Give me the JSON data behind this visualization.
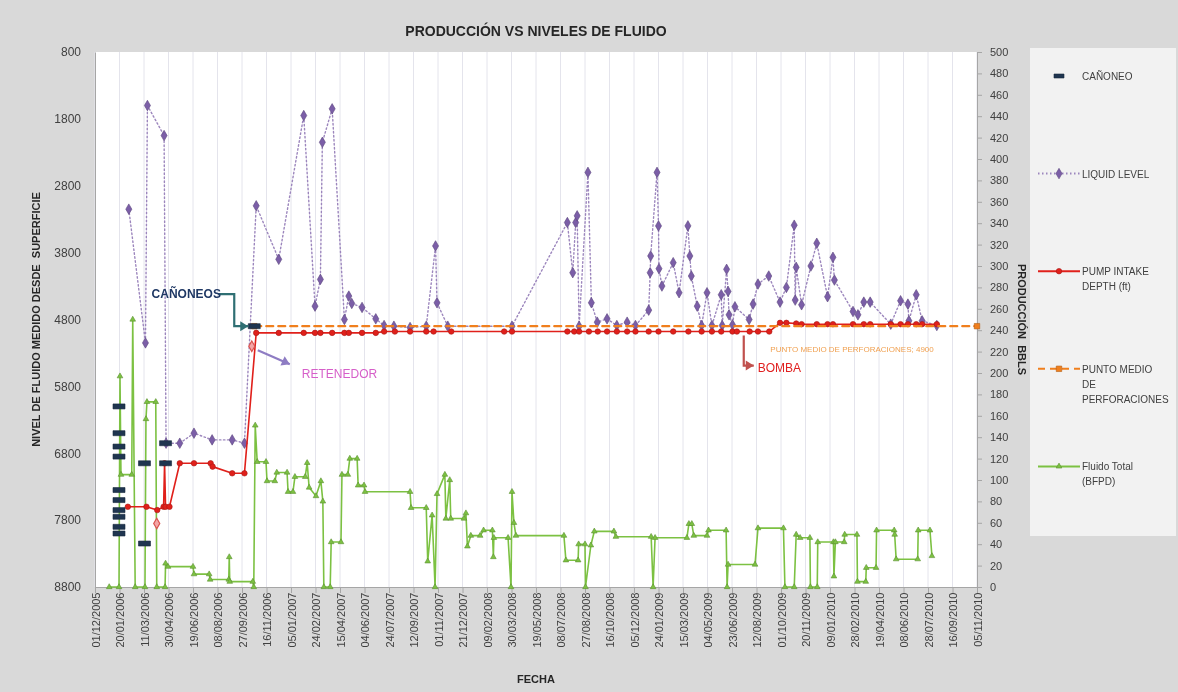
{
  "chart_data": {
    "type": "line",
    "title": "PRODUCCIÓN VS NIVELES DE FLUIDO",
    "xlabel": "FECHA",
    "ylabel": "NIVEL DE FLUIDO MEDIDO DESDE  SUPERFICIE",
    "y2label": "PRODUCCIÓN  BBLS",
    "xlim": [
      "2005-12-01",
      "2010-11-05"
    ],
    "xticks": [
      {
        "value": "2005-12-01",
        "label": "01/12/2005"
      },
      {
        "value": "2006-01-20",
        "label": "20/01/2006"
      },
      {
        "value": "2006-03-11",
        "label": "11/03/2006"
      },
      {
        "value": "2006-04-30",
        "label": "30/04/2006"
      },
      {
        "value": "2006-06-19",
        "label": "19/06/2006"
      },
      {
        "value": "2006-08-08",
        "label": "08/08/2006"
      },
      {
        "value": "2006-09-27",
        "label": "27/09/2006"
      },
      {
        "value": "2006-11-16",
        "label": "16/11/2006"
      },
      {
        "value": "2007-01-05",
        "label": "05/01/2007"
      },
      {
        "value": "2007-02-24",
        "label": "24/02/2007"
      },
      {
        "value": "2007-04-15",
        "label": "15/04/2007"
      },
      {
        "value": "2007-06-04",
        "label": "04/06/2007"
      },
      {
        "value": "2007-07-24",
        "label": "24/07/2007"
      },
      {
        "value": "2007-09-12",
        "label": "12/09/2007"
      },
      {
        "value": "2007-11-01",
        "label": "01/11/2007"
      },
      {
        "value": "2007-12-21",
        "label": "21/12/2007"
      },
      {
        "value": "2008-02-09",
        "label": "09/02/2008"
      },
      {
        "value": "2008-03-30",
        "label": "30/03/2008"
      },
      {
        "value": "2008-05-19",
        "label": "19/05/2008"
      },
      {
        "value": "2008-07-08",
        "label": "08/07/2008"
      },
      {
        "value": "2008-08-27",
        "label": "27/08/2008"
      },
      {
        "value": "2008-10-16",
        "label": "16/10/2008"
      },
      {
        "value": "2008-12-05",
        "label": "05/12/2008"
      },
      {
        "value": "2009-01-24",
        "label": "24/01/2009"
      },
      {
        "value": "2009-03-15",
        "label": "15/03/2009"
      },
      {
        "value": "2009-05-04",
        "label": "04/05/2009"
      },
      {
        "value": "2009-06-23",
        "label": "23/06/2009"
      },
      {
        "value": "2009-08-12",
        "label": "12/08/2009"
      },
      {
        "value": "2009-10-01",
        "label": "01/10/2009"
      },
      {
        "value": "2009-11-20",
        "label": "20/11/2009"
      },
      {
        "value": "2010-01-09",
        "label": "09/01/2010"
      },
      {
        "value": "2010-02-28",
        "label": "28/02/2010"
      },
      {
        "value": "2010-04-19",
        "label": "19/04/2010"
      },
      {
        "value": "2010-06-08",
        "label": "08/06/2010"
      },
      {
        "value": "2010-07-28",
        "label": "28/07/2010"
      },
      {
        "value": "2010-09-16",
        "label": "16/09/2010"
      },
      {
        "value": "2010-11-05",
        "label": "05/11/2010"
      }
    ],
    "ylim": [
      8800,
      800
    ],
    "yticks": [
      800,
      1800,
      2800,
      3800,
      4800,
      5800,
      6800,
      7800,
      8800
    ],
    "y2lim": [
      0,
      500
    ],
    "y2ticks": [
      0,
      20,
      40,
      60,
      80,
      100,
      120,
      140,
      160,
      180,
      200,
      220,
      240,
      260,
      280,
      300,
      320,
      340,
      360,
      380,
      400,
      420,
      440,
      460,
      480,
      500
    ],
    "grid": "x",
    "legend": "right",
    "series": [
      {
        "name": "CAÑONEO",
        "type": "scatter",
        "marker": "square",
        "color": "#1f3550",
        "x": [
          "2006-01-19",
          "2006-01-19",
          "2006-01-19",
          "2006-01-19",
          "2006-01-19",
          "2006-01-19",
          "2006-01-19",
          "2006-01-19",
          "2006-01-19",
          "2006-01-19",
          "2006-03-12",
          "2006-03-12",
          "2006-04-24",
          "2006-04-24",
          "2006-10-22"
        ],
        "values": [
          6100,
          6500,
          6700,
          6850,
          7350,
          7500,
          7650,
          7750,
          7900,
          8000,
          6950,
          8150,
          6650,
          6950,
          4900
        ]
      },
      {
        "name": "LIQUID LEVEL",
        "type": "line",
        "marker": "diamond",
        "line_style": "dotted",
        "color": "#7b5ea7",
        "x": [
          "2006-02-08",
          "2006-03-14",
          "2006-03-18",
          "2006-04-21",
          "2006-04-25",
          "2006-05-23",
          "2006-06-21",
          "2006-07-28",
          "2006-09-07",
          "2006-10-02",
          "2006-10-26",
          "2006-12-11",
          "2007-01-31",
          "2007-02-23",
          "2007-03-06",
          "2007-03-10",
          "2007-03-30",
          "2007-04-24",
          "2007-05-03",
          "2007-05-09",
          "2007-05-30",
          "2007-06-27",
          "2007-07-14",
          "2007-08-03",
          "2007-09-05",
          "2007-10-08",
          "2007-10-27",
          "2007-10-30",
          "2007-11-21",
          "2008-03-31",
          "2008-07-22",
          "2008-08-02",
          "2008-08-08",
          "2008-08-11",
          "2008-08-15",
          "2008-09-02",
          "2008-09-09",
          "2008-09-21",
          "2008-10-11",
          "2008-10-31",
          "2008-11-21",
          "2008-12-08",
          "2009-01-04",
          "2009-01-07",
          "2009-01-08",
          "2009-01-21",
          "2009-01-24",
          "2009-01-25",
          "2009-01-31",
          "2009-02-23",
          "2009-03-07",
          "2009-03-25",
          "2009-03-29",
          "2009-04-01",
          "2009-04-13",
          "2009-04-22",
          "2009-05-03",
          "2009-05-13",
          "2009-06-01",
          "2009-06-03",
          "2009-06-12",
          "2009-06-15",
          "2009-06-17",
          "2009-06-24",
          "2009-06-29",
          "2009-07-28",
          "2009-08-05",
          "2009-08-15",
          "2009-09-06",
          "2009-09-29",
          "2009-10-12",
          "2009-10-28",
          "2009-10-30",
          "2009-11-01",
          "2009-11-12",
          "2009-12-01",
          "2009-12-13",
          "2010-01-04",
          "2010-01-15",
          "2010-01-18",
          "2010-02-25",
          "2010-03-07",
          "2010-03-19",
          "2010-04-01",
          "2010-05-13",
          "2010-06-02",
          "2010-06-17",
          "2010-06-19",
          "2010-07-04",
          "2010-07-16",
          "2010-08-15"
        ],
        "values": [
          3150,
          5150,
          1600,
          2050,
          6650,
          6650,
          6500,
          6600,
          6600,
          6650,
          3100,
          3900,
          1750,
          4600,
          4200,
          2150,
          1650,
          4800,
          4450,
          4560,
          4620,
          4790,
          4890,
          4900,
          4920,
          4900,
          3700,
          4550,
          4900,
          4900,
          3350,
          4100,
          3350,
          3250,
          4900,
          2600,
          4550,
          4840,
          4790,
          4890,
          4840,
          4890,
          4660,
          4100,
          3850,
          2600,
          3400,
          4040,
          4300,
          3950,
          4400,
          3400,
          3850,
          4150,
          4600,
          4890,
          4400,
          4890,
          4430,
          4890,
          4050,
          4380,
          4730,
          4880,
          4610,
          4800,
          4570,
          4270,
          4150,
          4540,
          4320,
          3390,
          4510,
          4020,
          4580,
          4000,
          3660,
          4460,
          3870,
          4210,
          4680,
          4730,
          4540,
          4540,
          4870,
          4520,
          4570,
          4820,
          4430,
          4820,
          4890
        ]
      },
      {
        "name": "PUMP INTAKE DEPTH (ft)",
        "type": "line",
        "marker": "circle",
        "line_style": "solid",
        "color": "#e0201b",
        "x": [
          "2006-02-06",
          "2006-03-16",
          "2006-04-07",
          "2006-04-20",
          "2006-04-22",
          "2006-04-24",
          "2006-05-02",
          "2006-05-23",
          "2006-06-21",
          "2006-07-25",
          "2006-07-29",
          "2006-09-07",
          "2006-10-02",
          "2006-10-26",
          "2006-12-11",
          "2007-01-31",
          "2007-02-23",
          "2007-03-06",
          "2007-03-30",
          "2007-04-24",
          "2007-05-03",
          "2007-05-30",
          "2007-06-27",
          "2007-07-14",
          "2007-08-05",
          "2007-09-05",
          "2007-10-08",
          "2007-10-23",
          "2007-11-28",
          "2008-03-15",
          "2008-03-31",
          "2008-07-22",
          "2008-08-05",
          "2008-08-15",
          "2008-09-04",
          "2008-09-22",
          "2008-10-11",
          "2008-10-31",
          "2008-11-21",
          "2008-12-08",
          "2009-01-04",
          "2009-01-24",
          "2009-02-23",
          "2009-03-26",
          "2009-04-22",
          "2009-05-13",
          "2009-06-01",
          "2009-06-24",
          "2009-07-03",
          "2009-07-29",
          "2009-08-15",
          "2009-09-07",
          "2009-09-29",
          "2009-10-12",
          "2009-11-01",
          "2009-11-12",
          "2009-12-13",
          "2010-01-04",
          "2010-01-15",
          "2010-02-25",
          "2010-03-19",
          "2010-04-01",
          "2010-05-13",
          "2010-06-02",
          "2010-06-17",
          "2010-07-04",
          "2010-07-16",
          "2010-08-15"
        ],
        "values": [
          7600,
          7600,
          7650,
          7600,
          6950,
          7600,
          7600,
          6950,
          6950,
          6950,
          7000,
          7100,
          7100,
          5000,
          5000,
          5000,
          5000,
          5000,
          5000,
          5000,
          5000,
          5000,
          5000,
          4980,
          4980,
          4980,
          4980,
          4980,
          4980,
          4980,
          4980,
          4980,
          4980,
          4980,
          4980,
          4980,
          4980,
          4980,
          4980,
          4980,
          4980,
          4980,
          4980,
          4980,
          4980,
          4980,
          4980,
          4980,
          4980,
          4980,
          4980,
          4980,
          4850,
          4850,
          4860,
          4870,
          4870,
          4870,
          4870,
          4870,
          4870,
          4870,
          4870,
          4870,
          4870,
          4870,
          4870,
          4870
        ]
      },
      {
        "name": "PUNTO MEDIO DE PERFORACIONES",
        "type": "line",
        "marker": "square",
        "line_style": "dashed",
        "color": "#f07f1d",
        "x": [
          "2006-10-22",
          "2010-11-05"
        ],
        "values": [
          4900,
          4900
        ]
      },
      {
        "name": "Fluido Total (BFPD)",
        "type": "line",
        "axis": "y2",
        "marker": "triangle",
        "line_style": "solid",
        "color": "#7cc142",
        "x": [
          "2005-12-30",
          "2006-01-19",
          "2006-01-21",
          "2006-01-23",
          "2006-02-14",
          "2006-02-16",
          "2006-02-21",
          "2006-03-13",
          "2006-03-15",
          "2006-03-17",
          "2006-04-04",
          "2006-04-06",
          "2006-04-23",
          "2006-04-24",
          "2006-04-29",
          "2006-06-19",
          "2006-06-21",
          "2006-07-22",
          "2006-07-24",
          "2006-08-31",
          "2006-09-01",
          "2006-09-02",
          "2006-10-19",
          "2006-10-21",
          "2006-10-24",
          "2006-10-28",
          "2006-11-15",
          "2006-11-17",
          "2006-12-03",
          "2006-12-07",
          "2006-12-28",
          "2006-12-30",
          "2007-01-09",
          "2007-01-13",
          "2007-02-03",
          "2007-02-07",
          "2007-02-11",
          "2007-02-25",
          "2007-03-07",
          "2007-03-11",
          "2007-03-13",
          "2007-03-26",
          "2007-03-28",
          "2007-04-17",
          "2007-04-19",
          "2007-05-01",
          "2007-05-05",
          "2007-05-20",
          "2007-05-22",
          "2007-06-03",
          "2007-06-05",
          "2007-09-05",
          "2007-09-07",
          "2007-10-08",
          "2007-10-11",
          "2007-10-20",
          "2007-10-26",
          "2007-10-30",
          "2007-11-15",
          "2007-11-17",
          "2007-11-25",
          "2007-11-27",
          "2007-12-24",
          "2007-12-28",
          "2007-12-31",
          "2008-01-07",
          "2008-01-26",
          "2008-02-02",
          "2008-02-20",
          "2008-02-22",
          "2008-02-23",
          "2008-03-23",
          "2008-03-29",
          "2008-03-31",
          "2008-04-04",
          "2008-04-08",
          "2008-07-15",
          "2008-07-19",
          "2008-08-13",
          "2008-08-14",
          "2008-08-27",
          "2008-08-28",
          "2008-09-08",
          "2008-09-15",
          "2008-10-25",
          "2008-10-29",
          "2009-01-09",
          "2009-01-13",
          "2009-01-17",
          "2009-03-23",
          "2009-03-27",
          "2009-04-02",
          "2009-04-06",
          "2009-05-03",
          "2009-05-06",
          "2009-06-11",
          "2009-06-13",
          "2009-06-15",
          "2009-08-09",
          "2009-08-15",
          "2009-10-06",
          "2009-10-09",
          "2009-10-28",
          "2009-11-01",
          "2009-11-09",
          "2009-11-29",
          "2009-11-30",
          "2009-12-14",
          "2009-12-15",
          "2010-01-16",
          "2010-01-17",
          "2010-01-20",
          "2010-02-07",
          "2010-02-08",
          "2010-03-05",
          "2010-03-06",
          "2010-03-23",
          "2010-03-24",
          "2010-04-13",
          "2010-04-14",
          "2010-05-20",
          "2010-05-21",
          "2010-05-24",
          "2010-07-07",
          "2010-07-08",
          "2010-08-01",
          "2010-08-05"
        ],
        "values": [
          0,
          0,
          197,
          105,
          105,
          250,
          0,
          0,
          157,
          173,
          173,
          0,
          0,
          22,
          19,
          19,
          12,
          12,
          7,
          7,
          28,
          5,
          5,
          0,
          151,
          117,
          117,
          99,
          99,
          107,
          107,
          89,
          89,
          103,
          103,
          116,
          93,
          85,
          99,
          80,
          0,
          0,
          42,
          42,
          105,
          105,
          120,
          120,
          95,
          95,
          89,
          89,
          74,
          74,
          24,
          67,
          0,
          87,
          105,
          64,
          100,
          64,
          64,
          69,
          38,
          48,
          48,
          53,
          53,
          28,
          46,
          46,
          0,
          89,
          60,
          48,
          48,
          25,
          25,
          40,
          40,
          0,
          39,
          52,
          52,
          47,
          47,
          0,
          46,
          46,
          59,
          59,
          48,
          48,
          53,
          53,
          0,
          21,
          21,
          55,
          55,
          0,
          0,
          49,
          46,
          46,
          0,
          0,
          42,
          42,
          10,
          42,
          42,
          49,
          49,
          5,
          5,
          18,
          18,
          53,
          53,
          49,
          26,
          26,
          53,
          53,
          29
        ]
      },
      {
        "type": "scatter",
        "marker": "diamond",
        "color": "#f4a6a6",
        "x": [
          "2006-04-06",
          "2006-10-17"
        ],
        "values": [
          7850,
          5200
        ]
      }
    ],
    "annotations": [
      {
        "text": "CAÑONEOS",
        "x": "2006-10-22",
        "y": 4900
      },
      {
        "text": "RETENEDOR",
        "x": "2006-10-17",
        "y": 5200
      },
      {
        "text": "BOMBA",
        "x": "2009-07-17",
        "y": 4980
      },
      {
        "text": "PUNTO MEDIO DE PERFORACIONES; 4900",
        "x": "2010-02-23",
        "y": 4900
      }
    ]
  }
}
